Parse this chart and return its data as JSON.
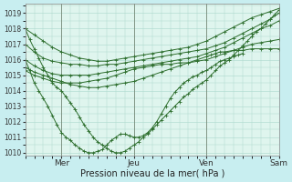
{
  "xlabel": "Pression niveau de la mer( hPa )",
  "background_color": "#c8eef0",
  "plot_background": "#dff5ee",
  "grid_color": "#aad8cc",
  "line_color": "#2d6e2d",
  "marker_color": "#2d6e2d",
  "ylim": [
    1009.8,
    1019.6
  ],
  "yticks": [
    1010,
    1011,
    1012,
    1013,
    1014,
    1015,
    1016,
    1017,
    1018,
    1019
  ],
  "xlim": [
    0,
    168
  ],
  "day_positions": [
    24,
    72,
    120,
    168
  ],
  "day_labels": [
    "Mer",
    "Jeu",
    "Ven",
    "Sam"
  ],
  "lines": [
    {
      "x": [
        0,
        6,
        12,
        18,
        24,
        30,
        36,
        42,
        48,
        54,
        60,
        66,
        72,
        78,
        84,
        90,
        96,
        102,
        108,
        114,
        120,
        126,
        132,
        138,
        144,
        150,
        156,
        162,
        168
      ],
      "y": [
        1018.0,
        1017.6,
        1017.2,
        1016.8,
        1016.5,
        1016.3,
        1016.1,
        1016.0,
        1015.9,
        1015.9,
        1016.0,
        1016.1,
        1016.2,
        1016.3,
        1016.4,
        1016.5,
        1016.6,
        1016.7,
        1016.8,
        1017.0,
        1017.2,
        1017.5,
        1017.8,
        1018.1,
        1018.4,
        1018.7,
        1018.9,
        1019.1,
        1019.3
      ]
    },
    {
      "x": [
        0,
        6,
        12,
        18,
        24,
        30,
        36,
        42,
        48,
        54,
        60,
        66,
        72,
        78,
        84,
        90,
        96,
        102,
        108,
        114,
        120,
        126,
        132,
        138,
        144,
        150,
        156,
        162,
        168
      ],
      "y": [
        1017.0,
        1016.5,
        1016.1,
        1015.9,
        1015.8,
        1015.7,
        1015.7,
        1015.6,
        1015.6,
        1015.7,
        1015.7,
        1015.8,
        1015.9,
        1016.0,
        1016.1,
        1016.2,
        1016.3,
        1016.4,
        1016.5,
        1016.6,
        1016.7,
        1016.9,
        1017.1,
        1017.4,
        1017.7,
        1018.0,
        1018.3,
        1018.6,
        1019.0
      ]
    },
    {
      "x": [
        0,
        6,
        12,
        18,
        24,
        30,
        36,
        42,
        48,
        54,
        60,
        66,
        72,
        78,
        84,
        90,
        96,
        102,
        108,
        114,
        120,
        126,
        132,
        138,
        144,
        150,
        156,
        162,
        168
      ],
      "y": [
        1016.0,
        1015.6,
        1015.3,
        1015.1,
        1015.0,
        1015.0,
        1015.0,
        1015.0,
        1015.1,
        1015.2,
        1015.3,
        1015.4,
        1015.5,
        1015.6,
        1015.7,
        1015.8,
        1015.9,
        1016.0,
        1016.1,
        1016.2,
        1016.4,
        1016.6,
        1016.8,
        1017.1,
        1017.4,
        1017.7,
        1018.0,
        1018.2,
        1018.5
      ]
    },
    {
      "x": [
        0,
        6,
        12,
        18,
        24,
        30,
        36,
        42,
        48,
        54,
        60,
        66,
        72,
        78,
        84,
        90,
        96,
        102,
        108,
        114,
        120,
        126,
        132,
        138,
        144,
        150,
        156,
        162,
        168
      ],
      "y": [
        1015.3,
        1015.0,
        1014.8,
        1014.6,
        1014.5,
        1014.5,
        1014.5,
        1014.6,
        1014.7,
        1014.8,
        1015.0,
        1015.2,
        1015.4,
        1015.5,
        1015.6,
        1015.7,
        1015.7,
        1015.8,
        1015.8,
        1015.9,
        1016.0,
        1016.2,
        1016.4,
        1016.6,
        1016.8,
        1017.0,
        1017.1,
        1017.2,
        1017.3
      ]
    },
    {
      "x": [
        0,
        3,
        6,
        9,
        12,
        15,
        18,
        21,
        24,
        27,
        30,
        33,
        36,
        39,
        42,
        45,
        48,
        51,
        54,
        57,
        60,
        63,
        66,
        69,
        72,
        75,
        78,
        81,
        84,
        87,
        90,
        93,
        96,
        99,
        102,
        105,
        108,
        111,
        114,
        117,
        120,
        123,
        126,
        129,
        132,
        135,
        138,
        141,
        144,
        147,
        150,
        153,
        156,
        159,
        162,
        165,
        168
      ],
      "y": [
        1018.0,
        1017.3,
        1016.7,
        1016.1,
        1015.5,
        1015.0,
        1014.5,
        1014.2,
        1014.0,
        1013.6,
        1013.2,
        1012.8,
        1012.3,
        1011.8,
        1011.4,
        1011.0,
        1010.7,
        1010.5,
        1010.3,
        1010.1,
        1010.0,
        1010.0,
        1010.1,
        1010.3,
        1010.5,
        1010.7,
        1011.0,
        1011.2,
        1011.5,
        1011.8,
        1012.1,
        1012.4,
        1012.7,
        1013.0,
        1013.3,
        1013.6,
        1013.8,
        1014.1,
        1014.3,
        1014.5,
        1014.7,
        1015.0,
        1015.3,
        1015.6,
        1015.8,
        1016.0,
        1016.3,
        1016.6,
        1016.9,
        1017.2,
        1017.5,
        1017.8,
        1018.0,
        1018.3,
        1018.6,
        1018.9,
        1019.2
      ]
    },
    {
      "x": [
        0,
        6,
        12,
        18,
        24,
        30,
        36,
        42,
        48,
        54,
        60,
        66,
        72,
        78,
        84,
        90,
        96,
        102,
        108,
        114,
        120,
        123,
        126,
        129,
        132,
        138,
        144,
        150,
        156,
        162,
        168
      ],
      "y": [
        1015.5,
        1015.2,
        1015.0,
        1014.8,
        1014.6,
        1014.4,
        1014.3,
        1014.2,
        1014.2,
        1014.3,
        1014.4,
        1014.5,
        1014.6,
        1014.8,
        1015.0,
        1015.2,
        1015.4,
        1015.6,
        1015.8,
        1016.0,
        1016.2,
        1016.3,
        1016.4,
        1016.5,
        1016.5,
        1016.6,
        1016.6,
        1016.7,
        1016.7,
        1016.7,
        1016.7
      ]
    },
    {
      "x": [
        0,
        3,
        6,
        9,
        12,
        15,
        18,
        21,
        24,
        27,
        30,
        33,
        36,
        39,
        42,
        45,
        48,
        51,
        54,
        57,
        60,
        63,
        66,
        69,
        72,
        75,
        78,
        81,
        84,
        87,
        90,
        93,
        96,
        99,
        102,
        105,
        108,
        111,
        114,
        117,
        120,
        123,
        126,
        129,
        132,
        135,
        138,
        141,
        144
      ],
      "y": [
        1016.0,
        1015.3,
        1014.5,
        1014.0,
        1013.5,
        1013.0,
        1012.4,
        1011.8,
        1011.3,
        1011.0,
        1010.8,
        1010.5,
        1010.3,
        1010.1,
        1010.0,
        1010.0,
        1010.1,
        1010.2,
        1010.5,
        1010.8,
        1011.0,
        1011.2,
        1011.2,
        1011.1,
        1011.0,
        1011.0,
        1011.1,
        1011.3,
        1011.6,
        1012.0,
        1012.5,
        1013.0,
        1013.5,
        1013.9,
        1014.2,
        1014.5,
        1014.7,
        1014.9,
        1015.0,
        1015.2,
        1015.3,
        1015.5,
        1015.7,
        1015.9,
        1016.0,
        1016.1,
        1016.2,
        1016.3,
        1016.4
      ]
    }
  ]
}
